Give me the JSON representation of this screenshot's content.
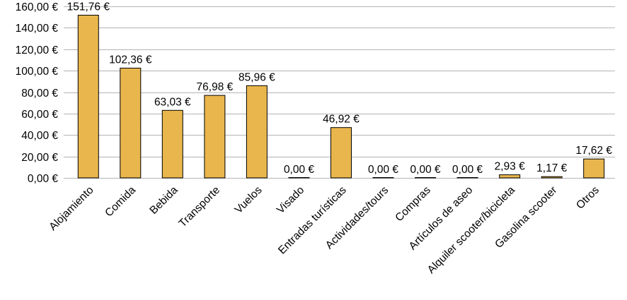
{
  "chart_data": {
    "type": "bar",
    "title": "",
    "xlabel": "",
    "ylabel": "",
    "ylim": [
      0,
      160
    ],
    "ytick_step": 20,
    "grid": true,
    "bar_color": "#e9b64d",
    "ytick_labels": [
      "0,00 €",
      "20,00 €",
      "40,00 €",
      "60,00 €",
      "80,00 €",
      "100,00 €",
      "120,00 €",
      "140,00 €",
      "160,00 €"
    ],
    "categories": [
      "Alojamiento",
      "Comida",
      "Bebida",
      "Transporte",
      "Vuelos",
      "Visado",
      "Entradas turísticas",
      "Actividades/tours",
      "Compras",
      "Artículos de aseo",
      "Alquiler scooter/bicicleta",
      "Gasolina scooter",
      "Otros"
    ],
    "values": [
      151.76,
      102.36,
      63.03,
      76.98,
      85.96,
      0.0,
      46.92,
      0.0,
      0.0,
      0.0,
      2.93,
      1.17,
      17.62
    ],
    "value_labels": [
      "151,76 €",
      "102,36 €",
      "63,03 €",
      "76,98 €",
      "85,96 €",
      "0,00 €",
      "46,92 €",
      "0,00 €",
      "0,00 €",
      "0,00 €",
      "2,93 €",
      "1,17 €",
      "17,62 €"
    ]
  }
}
